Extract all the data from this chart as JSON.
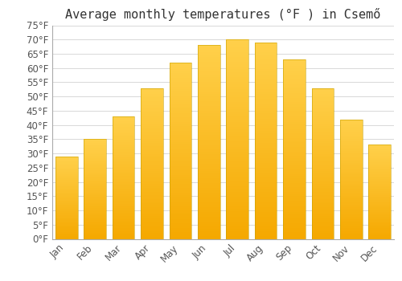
{
  "title": "Average monthly temperatures (°F ) in Csemő",
  "months": [
    "Jan",
    "Feb",
    "Mar",
    "Apr",
    "May",
    "Jun",
    "Jul",
    "Aug",
    "Sep",
    "Oct",
    "Nov",
    "Dec"
  ],
  "values": [
    29,
    35,
    43,
    53,
    62,
    68,
    70,
    69,
    63,
    53,
    42,
    33
  ],
  "ylim": [
    0,
    75
  ],
  "yticks": [
    0,
    5,
    10,
    15,
    20,
    25,
    30,
    35,
    40,
    45,
    50,
    55,
    60,
    65,
    70,
    75
  ],
  "bar_color_top": "#FFD04A",
  "bar_color_bottom": "#F5A800",
  "background_color": "#ffffff",
  "grid_color": "#d8d8d8",
  "title_fontsize": 11,
  "tick_fontsize": 8.5,
  "bar_edge_color": "#c8a000",
  "bar_edge_width": 0.4,
  "bar_width": 0.78
}
